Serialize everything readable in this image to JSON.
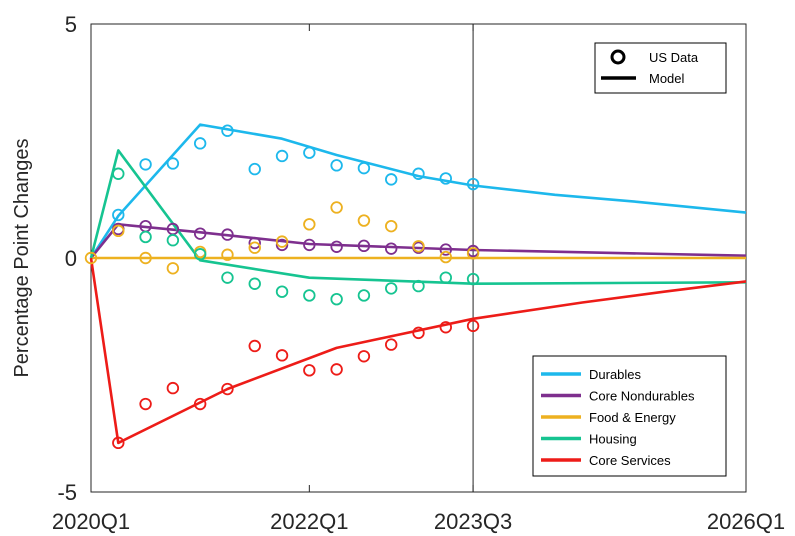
{
  "chart_data": {
    "type": "line",
    "ylabel": "Percentage Point Changes",
    "xlabel": "",
    "ylim": [
      -5,
      5
    ],
    "x_range": [
      "2020Q1",
      "2026Q1"
    ],
    "yticks": [
      -5,
      0,
      5
    ],
    "xticks": [
      "2020Q1",
      "2022Q1",
      "2023Q3",
      "2026Q1"
    ],
    "vertical_marker": "2023Q3",
    "grid": false,
    "legend_top": {
      "position": "top-right",
      "entries": [
        {
          "label": "US Data",
          "style": "circle"
        },
        {
          "label": "Model",
          "style": "line"
        }
      ]
    },
    "legend_bottom": {
      "position": "bottom-right"
    },
    "series": [
      {
        "name": "Durables",
        "color": "#1DB8EC",
        "model": [
          {
            "x": "2020Q1",
            "y": 0
          },
          {
            "x": "2020Q2",
            "y": 0.9
          },
          {
            "x": "2021Q1",
            "y": 2.85
          },
          {
            "x": "2021Q4",
            "y": 2.55
          },
          {
            "x": "2022Q2",
            "y": 2.2
          },
          {
            "x": "2023Q1",
            "y": 1.75
          },
          {
            "x": "2023Q3",
            "y": 1.55
          },
          {
            "x": "2024Q2",
            "y": 1.35
          },
          {
            "x": "2025Q1",
            "y": 1.2
          },
          {
            "x": "2026Q1",
            "y": 0.97
          }
        ],
        "data": [
          {
            "x": "2020Q2",
            "y": 0.92
          },
          {
            "x": "2020Q3",
            "y": 2.0
          },
          {
            "x": "2020Q4",
            "y": 2.02
          },
          {
            "x": "2021Q1",
            "y": 2.45
          },
          {
            "x": "2021Q2",
            "y": 2.72
          },
          {
            "x": "2021Q3",
            "y": 1.9
          },
          {
            "x": "2021Q4",
            "y": 2.18
          },
          {
            "x": "2022Q1",
            "y": 2.25
          },
          {
            "x": "2022Q2",
            "y": 1.98
          },
          {
            "x": "2022Q3",
            "y": 1.92
          },
          {
            "x": "2022Q4",
            "y": 1.68
          },
          {
            "x": "2023Q1",
            "y": 1.8
          },
          {
            "x": "2023Q2",
            "y": 1.7
          },
          {
            "x": "2023Q3",
            "y": 1.58
          }
        ]
      },
      {
        "name": "Core Nondurables",
        "color": "#7E2F8E",
        "model": [
          {
            "x": "2020Q1",
            "y": 0
          },
          {
            "x": "2020Q2",
            "y": 0.72
          },
          {
            "x": "2021Q1",
            "y": 0.55
          },
          {
            "x": "2022Q1",
            "y": 0.3
          },
          {
            "x": "2023Q3",
            "y": 0.17
          },
          {
            "x": "2026Q1",
            "y": 0.05
          }
        ],
        "data": [
          {
            "x": "2020Q2",
            "y": 0.62
          },
          {
            "x": "2020Q3",
            "y": 0.68
          },
          {
            "x": "2020Q4",
            "y": 0.62
          },
          {
            "x": "2021Q1",
            "y": 0.52
          },
          {
            "x": "2021Q2",
            "y": 0.5
          },
          {
            "x": "2021Q3",
            "y": 0.32
          },
          {
            "x": "2021Q4",
            "y": 0.28
          },
          {
            "x": "2022Q1",
            "y": 0.28
          },
          {
            "x": "2022Q2",
            "y": 0.24
          },
          {
            "x": "2022Q3",
            "y": 0.26
          },
          {
            "x": "2022Q4",
            "y": 0.2
          },
          {
            "x": "2023Q1",
            "y": 0.22
          },
          {
            "x": "2023Q2",
            "y": 0.18
          },
          {
            "x": "2023Q3",
            "y": 0.15
          }
        ]
      },
      {
        "name": "Food & Energy",
        "color": "#EDB120",
        "model": [
          {
            "x": "2020Q1",
            "y": 0
          },
          {
            "x": "2026Q1",
            "y": 0
          }
        ],
        "data": [
          {
            "x": "2020Q1",
            "y": 0.0
          },
          {
            "x": "2020Q2",
            "y": 0.58
          },
          {
            "x": "2020Q3",
            "y": 0.0
          },
          {
            "x": "2020Q4",
            "y": -0.22
          },
          {
            "x": "2021Q1",
            "y": 0.13
          },
          {
            "x": "2021Q2",
            "y": 0.07
          },
          {
            "x": "2021Q3",
            "y": 0.22
          },
          {
            "x": "2021Q4",
            "y": 0.35
          },
          {
            "x": "2022Q1",
            "y": 0.72
          },
          {
            "x": "2022Q2",
            "y": 1.08
          },
          {
            "x": "2022Q3",
            "y": 0.8
          },
          {
            "x": "2022Q4",
            "y": 0.68
          },
          {
            "x": "2023Q1",
            "y": 0.25
          },
          {
            "x": "2023Q2",
            "y": 0.02
          },
          {
            "x": "2023Q3",
            "y": 0.1
          }
        ]
      },
      {
        "name": "Housing",
        "color": "#16C491",
        "model": [
          {
            "x": "2020Q1",
            "y": 0
          },
          {
            "x": "2020Q2",
            "y": 2.3
          },
          {
            "x": "2021Q1",
            "y": -0.05
          },
          {
            "x": "2022Q1",
            "y": -0.42
          },
          {
            "x": "2023Q3",
            "y": -0.55
          },
          {
            "x": "2026Q1",
            "y": -0.52
          }
        ],
        "data": [
          {
            "x": "2020Q2",
            "y": 1.8
          },
          {
            "x": "2020Q3",
            "y": 0.45
          },
          {
            "x": "2020Q4",
            "y": 0.38
          },
          {
            "x": "2021Q1",
            "y": 0.08
          },
          {
            "x": "2021Q2",
            "y": -0.42
          },
          {
            "x": "2021Q3",
            "y": -0.55
          },
          {
            "x": "2021Q4",
            "y": -0.72
          },
          {
            "x": "2022Q1",
            "y": -0.8
          },
          {
            "x": "2022Q2",
            "y": -0.88
          },
          {
            "x": "2022Q3",
            "y": -0.8
          },
          {
            "x": "2022Q4",
            "y": -0.65
          },
          {
            "x": "2023Q1",
            "y": -0.6
          },
          {
            "x": "2023Q2",
            "y": -0.42
          },
          {
            "x": "2023Q3",
            "y": -0.45
          }
        ]
      },
      {
        "name": "Core Services",
        "color": "#ED1C18",
        "model": [
          {
            "x": "2020Q1",
            "y": 0
          },
          {
            "x": "2020Q2",
            "y": -3.95
          },
          {
            "x": "2021Q2",
            "y": -2.8
          },
          {
            "x": "2022Q2",
            "y": -1.92
          },
          {
            "x": "2023Q3",
            "y": -1.3
          },
          {
            "x": "2024Q3",
            "y": -0.95
          },
          {
            "x": "2025Q2",
            "y": -0.72
          },
          {
            "x": "2026Q1",
            "y": -0.5
          }
        ],
        "data": [
          {
            "x": "2020Q2",
            "y": -3.95
          },
          {
            "x": "2020Q3",
            "y": -3.12
          },
          {
            "x": "2020Q4",
            "y": -2.78
          },
          {
            "x": "2021Q1",
            "y": -3.12
          },
          {
            "x": "2021Q2",
            "y": -2.8
          },
          {
            "x": "2021Q3",
            "y": -1.88
          },
          {
            "x": "2021Q4",
            "y": -2.08
          },
          {
            "x": "2022Q1",
            "y": -2.4
          },
          {
            "x": "2022Q2",
            "y": -2.38
          },
          {
            "x": "2022Q3",
            "y": -2.1
          },
          {
            "x": "2022Q4",
            "y": -1.85
          },
          {
            "x": "2023Q1",
            "y": -1.6
          },
          {
            "x": "2023Q2",
            "y": -1.48
          },
          {
            "x": "2023Q3",
            "y": -1.45
          }
        ]
      }
    ]
  }
}
